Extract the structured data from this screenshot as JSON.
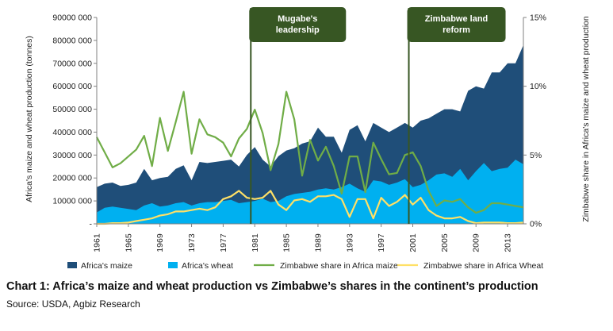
{
  "caption": "Chart 1: Africa’s maize and wheat production vs Zimbabwe’s shares in the continent’s production",
  "source": "Source: USDA, Agbiz Research",
  "chart_data": {
    "type": "area",
    "title": "",
    "ylabel": "Africa's maize and wheat production (tonnes)",
    "y2label": "Zimbabwe share in Africa's maize and wheat production",
    "ylim": [
      0,
      90000000
    ],
    "y2lim": [
      0,
      15
    ],
    "yticks": [
      "-",
      "10000 000",
      "20000 000",
      "30000 000",
      "40000 000",
      "50000 000",
      "60000 000",
      "70000 000",
      "80000 000",
      "90000 000"
    ],
    "y2ticks": [
      "0%",
      "5%",
      "10%",
      "15%"
    ],
    "xlim": [
      1961,
      2015
    ],
    "xticks": [
      "1961",
      "1965",
      "1969",
      "1973",
      "1977",
      "1981",
      "1985",
      "1989",
      "1993",
      "1997",
      "2001",
      "2005",
      "2009",
      "2013"
    ],
    "grid": false,
    "legend_position": "bottom",
    "colors": {
      "maize": "#1f4e79",
      "wheat": "#00b0f0",
      "zim_maize": "#70ad47",
      "zim_wheat": "#ffe066",
      "annotation_box": "#375623"
    },
    "years": [
      1961,
      1962,
      1963,
      1964,
      1965,
      1966,
      1967,
      1968,
      1969,
      1970,
      1971,
      1972,
      1973,
      1974,
      1975,
      1976,
      1977,
      1978,
      1979,
      1980,
      1981,
      1982,
      1983,
      1984,
      1985,
      1986,
      1987,
      1988,
      1989,
      1990,
      1991,
      1992,
      1993,
      1994,
      1995,
      1996,
      1997,
      1998,
      1999,
      2000,
      2001,
      2002,
      2003,
      2004,
      2005,
      2006,
      2007,
      2008,
      2009,
      2010,
      2011,
      2012,
      2013,
      2014,
      2015
    ],
    "series": [
      {
        "name": "Africa's maize",
        "kind": "area",
        "axis": "left",
        "stacked_total": true,
        "values": [
          16000000,
          17500000,
          18000000,
          16500000,
          17000000,
          18000000,
          24000000,
          19000000,
          20000000,
          20500000,
          24000000,
          25500000,
          19000000,
          27000000,
          26500000,
          27000000,
          27500000,
          28000000,
          25000000,
          30000000,
          33500000,
          28000000,
          25000000,
          29500000,
          32000000,
          33000000,
          35000000,
          36000000,
          42000000,
          38000000,
          38000000,
          31000000,
          41000000,
          43000000,
          36000000,
          44000000,
          42000000,
          40000000,
          42000000,
          44000000,
          42000000,
          45000000,
          46000000,
          48000000,
          50000000,
          50000000,
          49000000,
          58000000,
          60000000,
          59000000,
          66000000,
          66000000,
          70000000,
          70000000,
          78000000
        ]
      },
      {
        "name": "Africa's wheat",
        "kind": "area",
        "axis": "left",
        "values": [
          5000000,
          7000000,
          7500000,
          7000000,
          6500000,
          6000000,
          8000000,
          9000000,
          7500000,
          8000000,
          9000000,
          9500000,
          8000000,
          9000000,
          9500000,
          9500000,
          10000000,
          10500000,
          9000000,
          9500000,
          10000000,
          11000000,
          9500000,
          10000000,
          12000000,
          13000000,
          13500000,
          14000000,
          15000000,
          15500000,
          15000000,
          16000000,
          17500000,
          15500000,
          14000000,
          19000000,
          18500000,
          17000000,
          18000000,
          19500000,
          16000000,
          17000000,
          19000000,
          21500000,
          22000000,
          20500000,
          24000000,
          19000000,
          23000000,
          26500000,
          23000000,
          24000000,
          24500000,
          28000000,
          26000000
        ]
      },
      {
        "name": "Zimbabwe share in Africa maize",
        "kind": "line",
        "axis": "right",
        "values": [
          6.3,
          5.2,
          4.1,
          4.4,
          4.9,
          5.4,
          6.4,
          4.2,
          7.7,
          5.3,
          7.4,
          9.6,
          5.1,
          7.6,
          6.5,
          6.3,
          5.9,
          4.9,
          6.2,
          6.9,
          8.3,
          6.6,
          3.9,
          5.8,
          9.6,
          7.6,
          3.5,
          6.1,
          4.6,
          5.6,
          4.2,
          2.2,
          4.9,
          4.9,
          2.3,
          5.9,
          4.7,
          3.6,
          3.7,
          5.0,
          5.2,
          4.2,
          2.4,
          1.3,
          1.7,
          1.6,
          1.8,
          1.2,
          0.8,
          1.0,
          1.5,
          1.5,
          1.4,
          1.3,
          1.2
        ]
      },
      {
        "name": "Zimbabwe share in Africa Wheat",
        "kind": "line",
        "axis": "right",
        "values": [
          0.0,
          0.0,
          0.05,
          0.05,
          0.1,
          0.2,
          0.3,
          0.4,
          0.6,
          0.7,
          0.9,
          0.9,
          1.0,
          1.1,
          1.0,
          1.2,
          1.8,
          2.0,
          2.4,
          1.9,
          1.8,
          1.9,
          2.4,
          1.4,
          1.0,
          1.7,
          1.8,
          1.6,
          2.0,
          2.0,
          2.1,
          1.8,
          0.5,
          1.8,
          1.8,
          0.4,
          1.9,
          1.3,
          1.6,
          2.1,
          1.4,
          1.9,
          1.0,
          0.6,
          0.4,
          0.4,
          0.5,
          0.2,
          0.05,
          0.1,
          0.1,
          0.1,
          0.05,
          0.05,
          0.1
        ]
      }
    ],
    "annotations": [
      {
        "label": "Mugabe's\nleadership",
        "year": 1980.5
      },
      {
        "label": "Zimbabwe land\nreform",
        "year": 2000.5
      }
    ]
  }
}
